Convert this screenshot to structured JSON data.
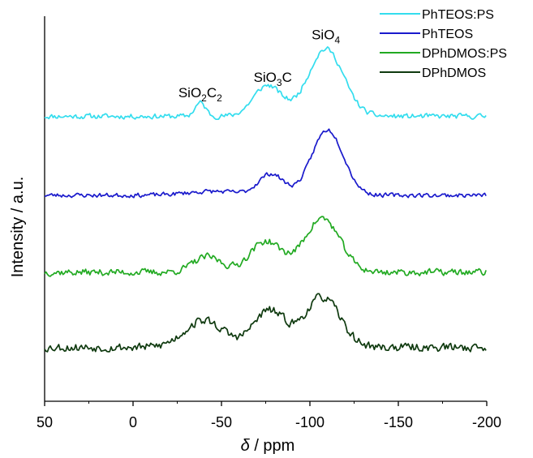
{
  "chart_data": {
    "type": "line",
    "title": "",
    "xlabel": {
      "italic": "δ",
      "rest": " / ppm"
    },
    "ylabel": "Intensity / a.u.",
    "x_reversed": true,
    "xlim": [
      50,
      -200
    ],
    "x_ticks": [
      50,
      0,
      -50,
      -100,
      -150,
      -200
    ],
    "x_tick_labels": [
      "50",
      "0",
      "-50",
      "-100",
      "-150",
      "-200"
    ],
    "y_ticks_shown": false,
    "y_range_normalized": [
      0,
      1
    ],
    "noise_seed_note": "",
    "series": [
      {
        "name": "PhTEOS:PS",
        "color": "#33DDEE",
        "baseline": 0.74,
        "noise": 0.006,
        "seed": 11,
        "peaks": [
          {
            "center": -38,
            "height": 0.035,
            "width": 3
          },
          {
            "center": -76,
            "height": 0.08,
            "width": 8
          },
          {
            "center": -109,
            "height": 0.175,
            "width": 10
          }
        ]
      },
      {
        "name": "PhTEOS",
        "color": "#1A1ACC",
        "baseline": 0.535,
        "noise": 0.005,
        "seed": 23,
        "peaks": [
          {
            "center": -45,
            "height": 0.01,
            "width": 15
          },
          {
            "center": -78,
            "height": 0.055,
            "width": 7
          },
          {
            "center": -110,
            "height": 0.17,
            "width": 9
          }
        ]
      },
      {
        "name": "DPhDMOS:PS",
        "color": "#22AA22",
        "baseline": 0.335,
        "noise": 0.008,
        "seed": 37,
        "peaks": [
          {
            "center": -42,
            "height": 0.04,
            "width": 8
          },
          {
            "center": -75,
            "height": 0.08,
            "width": 9
          },
          {
            "center": -107,
            "height": 0.14,
            "width": 10
          }
        ]
      },
      {
        "name": "DPhDMOS",
        "color": "#0F3A0F",
        "baseline": 0.14,
        "noise": 0.01,
        "seed": 53,
        "peaks": [
          {
            "center": -40,
            "height": 0.07,
            "width": 11
          },
          {
            "center": -77,
            "height": 0.095,
            "width": 9
          },
          {
            "center": -107,
            "height": 0.13,
            "width": 10
          }
        ]
      }
    ],
    "annotations": [
      {
        "x": -38,
        "y": 0.79,
        "parts": [
          [
            "SiO",
            ""
          ],
          [
            "2",
            "sub"
          ],
          [
            "C",
            ""
          ],
          [
            "2",
            "sub"
          ]
        ]
      },
      {
        "x": -79,
        "y": 0.83,
        "parts": [
          [
            "SiO",
            ""
          ],
          [
            "3",
            "sub"
          ],
          [
            "C",
            ""
          ]
        ]
      },
      {
        "x": -109,
        "y": 0.94,
        "parts": [
          [
            "SiO",
            ""
          ],
          [
            "4",
            "sub"
          ]
        ]
      }
    ],
    "legend_position": "top-right",
    "grid": false
  }
}
